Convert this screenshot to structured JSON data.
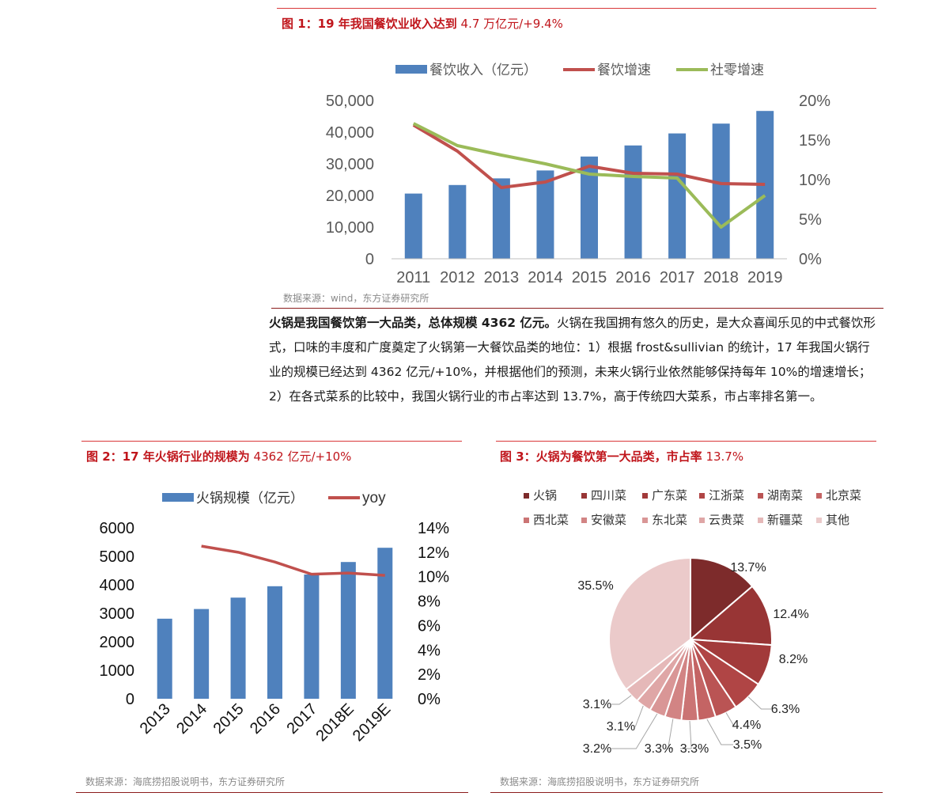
{
  "fig1": {
    "title_bold": "图 1：19 年我国餐饮业收入达到",
    "title_thin": " 4.7 万亿元/+9.4%",
    "source": "数据来源：wind，东方证券研究所",
    "colors": {
      "bar": "#4f81bd",
      "line1": "#c0504d",
      "line2": "#9bbb59"
    }
  },
  "paragraph": {
    "bold": "火锅是我国餐饮第一大品类，总体规模 4362 亿元。",
    "text": "火锅在我国拥有悠久的历史，是大众喜闻乐见的中式餐饮形式，口味的丰度和广度奠定了火锅第一大餐饮品类的地位：1）根据 frost&sullivian 的统计，17 年我国火锅行业的规模已经达到 4362 亿元/+10%，并根据他们的预测，未来火锅行业依然能够保持每年 10%的增速增长；2）在各式菜系的比较中，我国火锅行业的市占率达到 13.7%，高于传统四大菜系，市占率排名第一。"
  },
  "fig2": {
    "title_bold": "图 2：17 年火锅行业的规模为",
    "title_thin": " 4362 亿元/+10%",
    "source": "数据来源：海底捞招股说明书，东方证券研究所",
    "colors": {
      "bar": "#4f81bd",
      "line": "#c0504d"
    }
  },
  "fig3": {
    "title_bold": "图 3：火锅为餐饮第一大品类，市占率",
    "title_thin": " 13.7%",
    "source": "数据来源：海底捞招股说明书，东方证券研究所"
  },
  "chart_data": [
    {
      "type": "bar",
      "categories": [
        "2011",
        "2012",
        "2013",
        "2014",
        "2015",
        "2016",
        "2017",
        "2018",
        "2019"
      ],
      "series": [
        {
          "name": "餐饮收入（亿元）",
          "type": "bar",
          "axis": "left",
          "values": [
            20600,
            23300,
            25400,
            27900,
            32300,
            35800,
            39600,
            42700,
            46700
          ]
        },
        {
          "name": "餐饮增速",
          "type": "line",
          "axis": "right",
          "values": [
            16.9,
            13.6,
            9.0,
            9.7,
            11.7,
            10.8,
            10.7,
            9.5,
            9.4
          ]
        },
        {
          "name": "社零增速",
          "type": "line",
          "axis": "right",
          "values": [
            17.1,
            14.3,
            13.1,
            12.0,
            10.7,
            10.4,
            10.2,
            4.0,
            8.0
          ]
        }
      ],
      "left_ticks": [
        "0",
        "10,000",
        "20,000",
        "30,000",
        "40,000",
        "50,000"
      ],
      "right_ticks": [
        "0%",
        "5%",
        "10%",
        "15%",
        "20%"
      ],
      "ylim_left": [
        0,
        50000
      ],
      "ylim_right": [
        0,
        20
      ],
      "legend": "top"
    },
    {
      "type": "bar",
      "categories": [
        "2013",
        "2014",
        "2015",
        "2016",
        "2017",
        "2018E",
        "2019E"
      ],
      "series": [
        {
          "name": "火锅规模（亿元）",
          "type": "bar",
          "axis": "left",
          "values": [
            2810,
            3150,
            3550,
            3950,
            4362,
            4800,
            5300
          ]
        },
        {
          "name": "yoy",
          "type": "line",
          "axis": "right",
          "values": [
            null,
            12.5,
            12.0,
            11.2,
            10.2,
            10.3,
            10.1
          ]
        }
      ],
      "left_ticks": [
        "0",
        "1000",
        "2000",
        "3000",
        "4000",
        "5000",
        "6000"
      ],
      "right_ticks": [
        "0%",
        "2%",
        "4%",
        "6%",
        "8%",
        "10%",
        "12%",
        "14%"
      ],
      "ylim_left": [
        0,
        6000
      ],
      "ylim_right": [
        0,
        14
      ],
      "legend": "top"
    },
    {
      "type": "pie",
      "labels": [
        "火锅",
        "四川菜",
        "广东菜",
        "江浙菜",
        "湖南菜",
        "北京菜",
        "西北菜",
        "安徽菜",
        "东北菜",
        "云贵菜",
        "新疆菜",
        "其他"
      ],
      "values": [
        13.7,
        12.4,
        8.2,
        6.3,
        4.4,
        3.5,
        3.3,
        3.3,
        3.2,
        3.1,
        3.1,
        35.5
      ],
      "value_labels": [
        "13.7%",
        "12.4%",
        "8.2%",
        "6.3%",
        "4.4%",
        "3.5%",
        "3.3%",
        "3.3%",
        "3.2%",
        "3.1%",
        "3.1%",
        "35.5%"
      ],
      "colors": [
        "#7d2b2b",
        "#983535",
        "#a23a3a",
        "#b04545",
        "#ba5454",
        "#c46464",
        "#cb7474",
        "#d28484",
        "#d99696",
        "#dfa6a6",
        "#e5b8b8",
        "#ebcaca"
      ],
      "legend": "top"
    }
  ]
}
